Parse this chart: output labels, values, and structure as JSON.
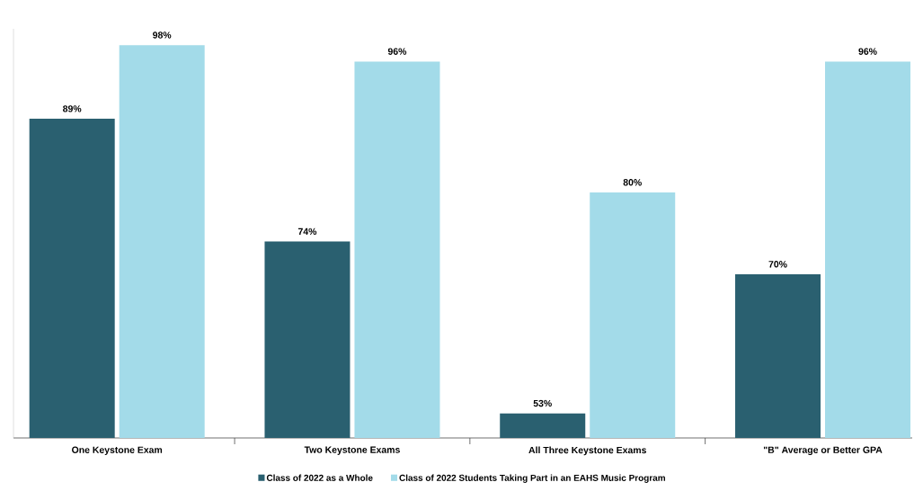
{
  "chart_data": {
    "type": "bar",
    "categories": [
      "One Keystone Exam",
      "Two Keystone Exams",
      "All Three Keystone Exams",
      "\"B\" Average or Better GPA"
    ],
    "series": [
      {
        "name": "Class of 2022 as a Whole",
        "color": "#2a6070",
        "values": [
          89,
          74,
          53,
          70
        ],
        "value_labels": [
          "89%",
          "74%",
          "53%",
          "70%"
        ]
      },
      {
        "name": "Class of 2022 Students Taking Part in an EAHS Music Program",
        "color": "#a3dbe9",
        "values": [
          98,
          96,
          80,
          96
        ],
        "value_labels": [
          "98%",
          "96%",
          "80%",
          "96%"
        ]
      }
    ],
    "ylim": [
      50,
      100
    ],
    "tick_labels": "x",
    "legend": "bottom"
  }
}
